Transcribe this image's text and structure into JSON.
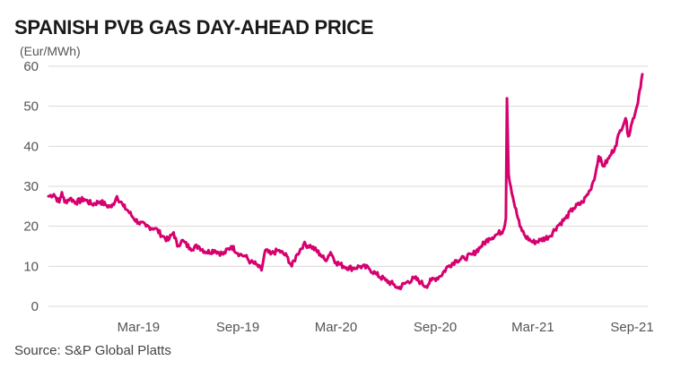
{
  "title": "SPANISH PVB GAS DAY-AHEAD PRICE",
  "unit_label": "(Eur/MWh)",
  "source": "Source: S&P Global Platts",
  "line_color": "#d6006f",
  "grid_color": "#d9d9d9",
  "chart_data": {
    "type": "line",
    "ylim": [
      0,
      60
    ],
    "y_ticks": [
      0,
      10,
      20,
      30,
      40,
      50,
      60
    ],
    "x_start": "2018-09-15",
    "x_end": "2021-09-30",
    "x_ticks": [
      {
        "date": "2019-03-01",
        "label": "Mar-19"
      },
      {
        "date": "2019-09-01",
        "label": "Sep-19"
      },
      {
        "date": "2020-03-01",
        "label": "Mar-20"
      },
      {
        "date": "2020-09-01",
        "label": "Sep-20"
      },
      {
        "date": "2021-03-01",
        "label": "Mar-21"
      },
      {
        "date": "2021-09-01",
        "label": "Sep-21"
      }
    ],
    "series": [
      {
        "values": [
          [
            "2018-09-15",
            27.5
          ],
          [
            "2018-09-25",
            28
          ],
          [
            "2018-10-05",
            26
          ],
          [
            "2018-10-10",
            28.5
          ],
          [
            "2018-10-15",
            26
          ],
          [
            "2018-10-25",
            27
          ],
          [
            "2018-11-05",
            26
          ],
          [
            "2018-11-20",
            26.8
          ],
          [
            "2018-12-05",
            25.5
          ],
          [
            "2018-12-20",
            26.2
          ],
          [
            "2019-01-01",
            25.2
          ],
          [
            "2019-01-10",
            24.8
          ],
          [
            "2019-01-20",
            27.5
          ],
          [
            "2019-02-01",
            25
          ],
          [
            "2019-02-10",
            23.8
          ],
          [
            "2019-02-20",
            22
          ],
          [
            "2019-03-01",
            21
          ],
          [
            "2019-03-15",
            20
          ],
          [
            "2019-04-01",
            19.5
          ],
          [
            "2019-04-15",
            17.5
          ],
          [
            "2019-04-25",
            16.5
          ],
          [
            "2019-05-05",
            18.5
          ],
          [
            "2019-05-12",
            15
          ],
          [
            "2019-05-20",
            16.5
          ],
          [
            "2019-06-05",
            14.5
          ],
          [
            "2019-06-20",
            15
          ],
          [
            "2019-07-05",
            13.5
          ],
          [
            "2019-07-20",
            14
          ],
          [
            "2019-08-05",
            13
          ],
          [
            "2019-08-20",
            15
          ],
          [
            "2019-09-05",
            13
          ],
          [
            "2019-09-15",
            12.5
          ],
          [
            "2019-09-25",
            11
          ],
          [
            "2019-10-05",
            10.5
          ],
          [
            "2019-10-15",
            9
          ],
          [
            "2019-10-22",
            14
          ],
          [
            "2019-11-01",
            13
          ],
          [
            "2019-11-15",
            14
          ],
          [
            "2019-12-01",
            12.5
          ],
          [
            "2019-12-10",
            10
          ],
          [
            "2019-12-20",
            13
          ],
          [
            "2020-01-01",
            15.5
          ],
          [
            "2020-01-15",
            15
          ],
          [
            "2020-02-01",
            13
          ],
          [
            "2020-02-10",
            11.5
          ],
          [
            "2020-02-20",
            13.5
          ],
          [
            "2020-03-01",
            11
          ],
          [
            "2020-03-15",
            10
          ],
          [
            "2020-04-01",
            9.5
          ],
          [
            "2020-04-15",
            10
          ],
          [
            "2020-05-01",
            9.5
          ],
          [
            "2020-05-15",
            8
          ],
          [
            "2020-06-01",
            6.5
          ],
          [
            "2020-06-15",
            5.5
          ],
          [
            "2020-06-25",
            4.5
          ],
          [
            "2020-07-10",
            6
          ],
          [
            "2020-07-25",
            7
          ],
          [
            "2020-08-05",
            6
          ],
          [
            "2020-08-15",
            5
          ],
          [
            "2020-08-25",
            6.5
          ],
          [
            "2020-09-10",
            7.5
          ],
          [
            "2020-09-25",
            10
          ],
          [
            "2020-10-10",
            11.5
          ],
          [
            "2020-10-25",
            12
          ],
          [
            "2020-11-10",
            13
          ],
          [
            "2020-11-25",
            15
          ],
          [
            "2020-12-10",
            17
          ],
          [
            "2020-12-25",
            18
          ],
          [
            "2021-01-05",
            19
          ],
          [
            "2021-01-10",
            22
          ],
          [
            "2021-01-12",
            52
          ],
          [
            "2021-01-15",
            33
          ],
          [
            "2021-01-25",
            26
          ],
          [
            "2021-02-05",
            20
          ],
          [
            "2021-02-15",
            17.5
          ],
          [
            "2021-03-01",
            16
          ],
          [
            "2021-03-15",
            16.5
          ],
          [
            "2021-04-01",
            17.5
          ],
          [
            "2021-04-15",
            20
          ],
          [
            "2021-05-01",
            22
          ],
          [
            "2021-05-15",
            24.5
          ],
          [
            "2021-06-01",
            26
          ],
          [
            "2021-06-15",
            29
          ],
          [
            "2021-06-25",
            33
          ],
          [
            "2021-07-01",
            37.5
          ],
          [
            "2021-07-10",
            35
          ],
          [
            "2021-07-20",
            37
          ],
          [
            "2021-08-01",
            40
          ],
          [
            "2021-08-10",
            44
          ],
          [
            "2021-08-20",
            47
          ],
          [
            "2021-08-25",
            42.5
          ],
          [
            "2021-09-01",
            46
          ],
          [
            "2021-09-10",
            50
          ],
          [
            "2021-09-15",
            54
          ],
          [
            "2021-09-20",
            58
          ]
        ]
      }
    ]
  }
}
